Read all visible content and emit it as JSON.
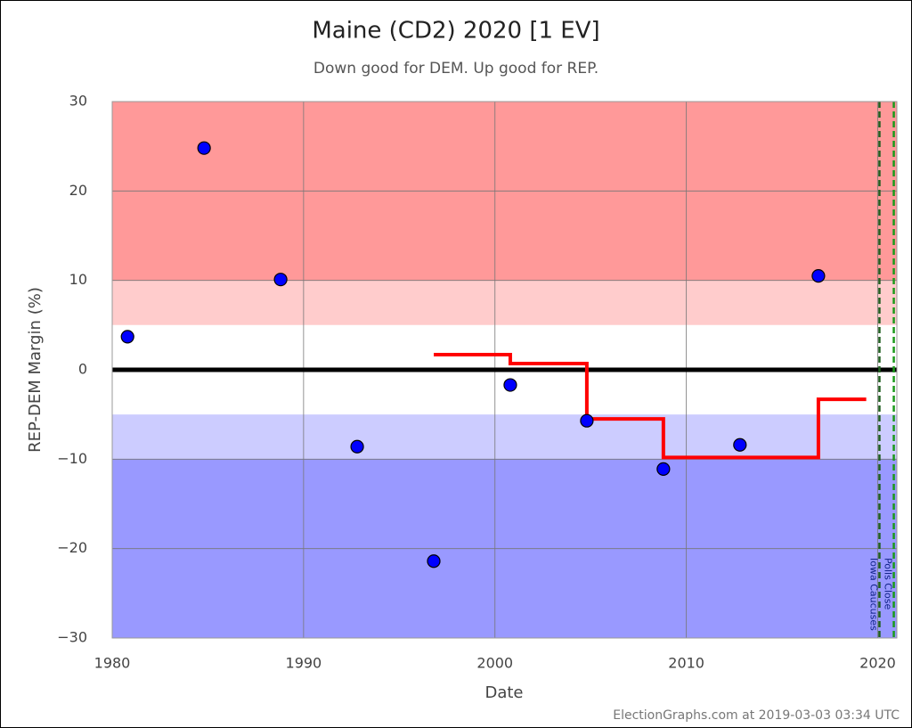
{
  "chart_data": {
    "type": "scatter",
    "title": "Maine (CD2) 2020 [1 EV]",
    "subtitle": "Down good for DEM. Up good for REP.",
    "x_label": "Date",
    "y_label": "REP-DEM Margin (%)",
    "footer": "ElectionGraphs.com at 2019-03-03 03:34 UTC",
    "xlim": [
      1980,
      2021
    ],
    "ylim": [
      -30,
      30
    ],
    "xticks": [
      1980,
      1990,
      2000,
      2010,
      2020
    ],
    "yticks": [
      {
        "value": -30,
        "label": "−30"
      },
      {
        "value": -20,
        "label": "−20"
      },
      {
        "value": -10,
        "label": "−10"
      },
      0,
      10,
      20,
      30
    ],
    "grid": true,
    "bands": [
      {
        "from": 10,
        "to": 30,
        "color": "#ff9999"
      },
      {
        "from": 5,
        "to": 10,
        "color": "#ffcccc"
      },
      {
        "from": -5,
        "to": 5,
        "color": "#ffffff"
      },
      {
        "from": -10,
        "to": -5,
        "color": "#ccccff"
      },
      {
        "from": -30,
        "to": -10,
        "color": "#9999ff"
      }
    ],
    "reference_line": 0,
    "points": {
      "color": "#0000ff",
      "x": [
        1980.8,
        1984.8,
        1988.8,
        1992.8,
        1996.8,
        2000.8,
        2004.8,
        2008.8,
        2012.8,
        2016.9
      ],
      "values": [
        3.7,
        24.8,
        10.1,
        -8.6,
        -21.4,
        -1.7,
        -5.7,
        -11.1,
        -8.4,
        10.5
      ]
    },
    "average_line": {
      "color": "#ff0000",
      "x": [
        1996.8,
        2000.8,
        2004.8,
        2008.8,
        2016.9,
        2019.4
      ],
      "values": [
        1.7,
        0.7,
        -5.5,
        -9.8,
        -3.3,
        -3.3
      ]
    },
    "events": [
      {
        "x": 2020.09,
        "label": "Iowa Caucuses",
        "color": "#1f5f1f"
      },
      {
        "x": 2020.84,
        "label": "Polls Close",
        "color": "#1a9a1a"
      }
    ]
  }
}
